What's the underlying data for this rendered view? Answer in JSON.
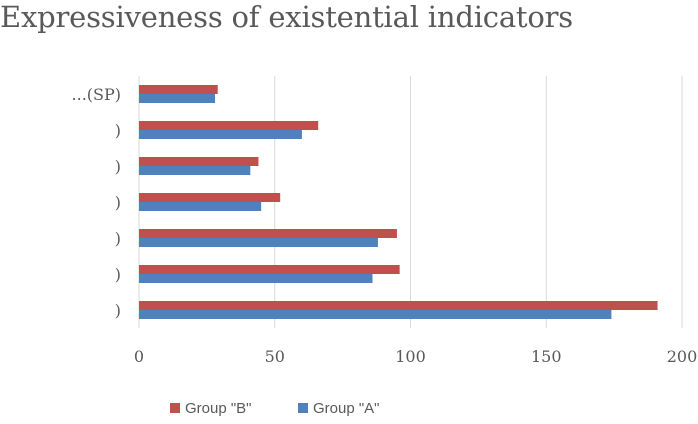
{
  "chart_data": {
    "type": "bar",
    "orientation": "horizontal",
    "title": "Expressiveness of existential indicators",
    "categories": [
      ")",
      ")",
      ")",
      ")",
      ")",
      ")",
      "...(SP)"
    ],
    "series": [
      {
        "name": "Group \"B\"",
        "color": "#c0504d",
        "values": [
          191,
          96,
          95,
          52,
          44,
          66,
          29
        ]
      },
      {
        "name": "Group \"A\"",
        "color": "#4f81bd",
        "values": [
          174,
          86,
          88,
          45,
          41,
          60,
          28
        ]
      }
    ],
    "xlim": [
      0,
      200
    ],
    "xticks": [
      0,
      50,
      100,
      150,
      200
    ],
    "xlabel": "",
    "ylabel": "",
    "grid": "vertical",
    "legend": "bottom",
    "legend_order": [
      "Group \"B\"",
      "Group \"A\""
    ]
  }
}
